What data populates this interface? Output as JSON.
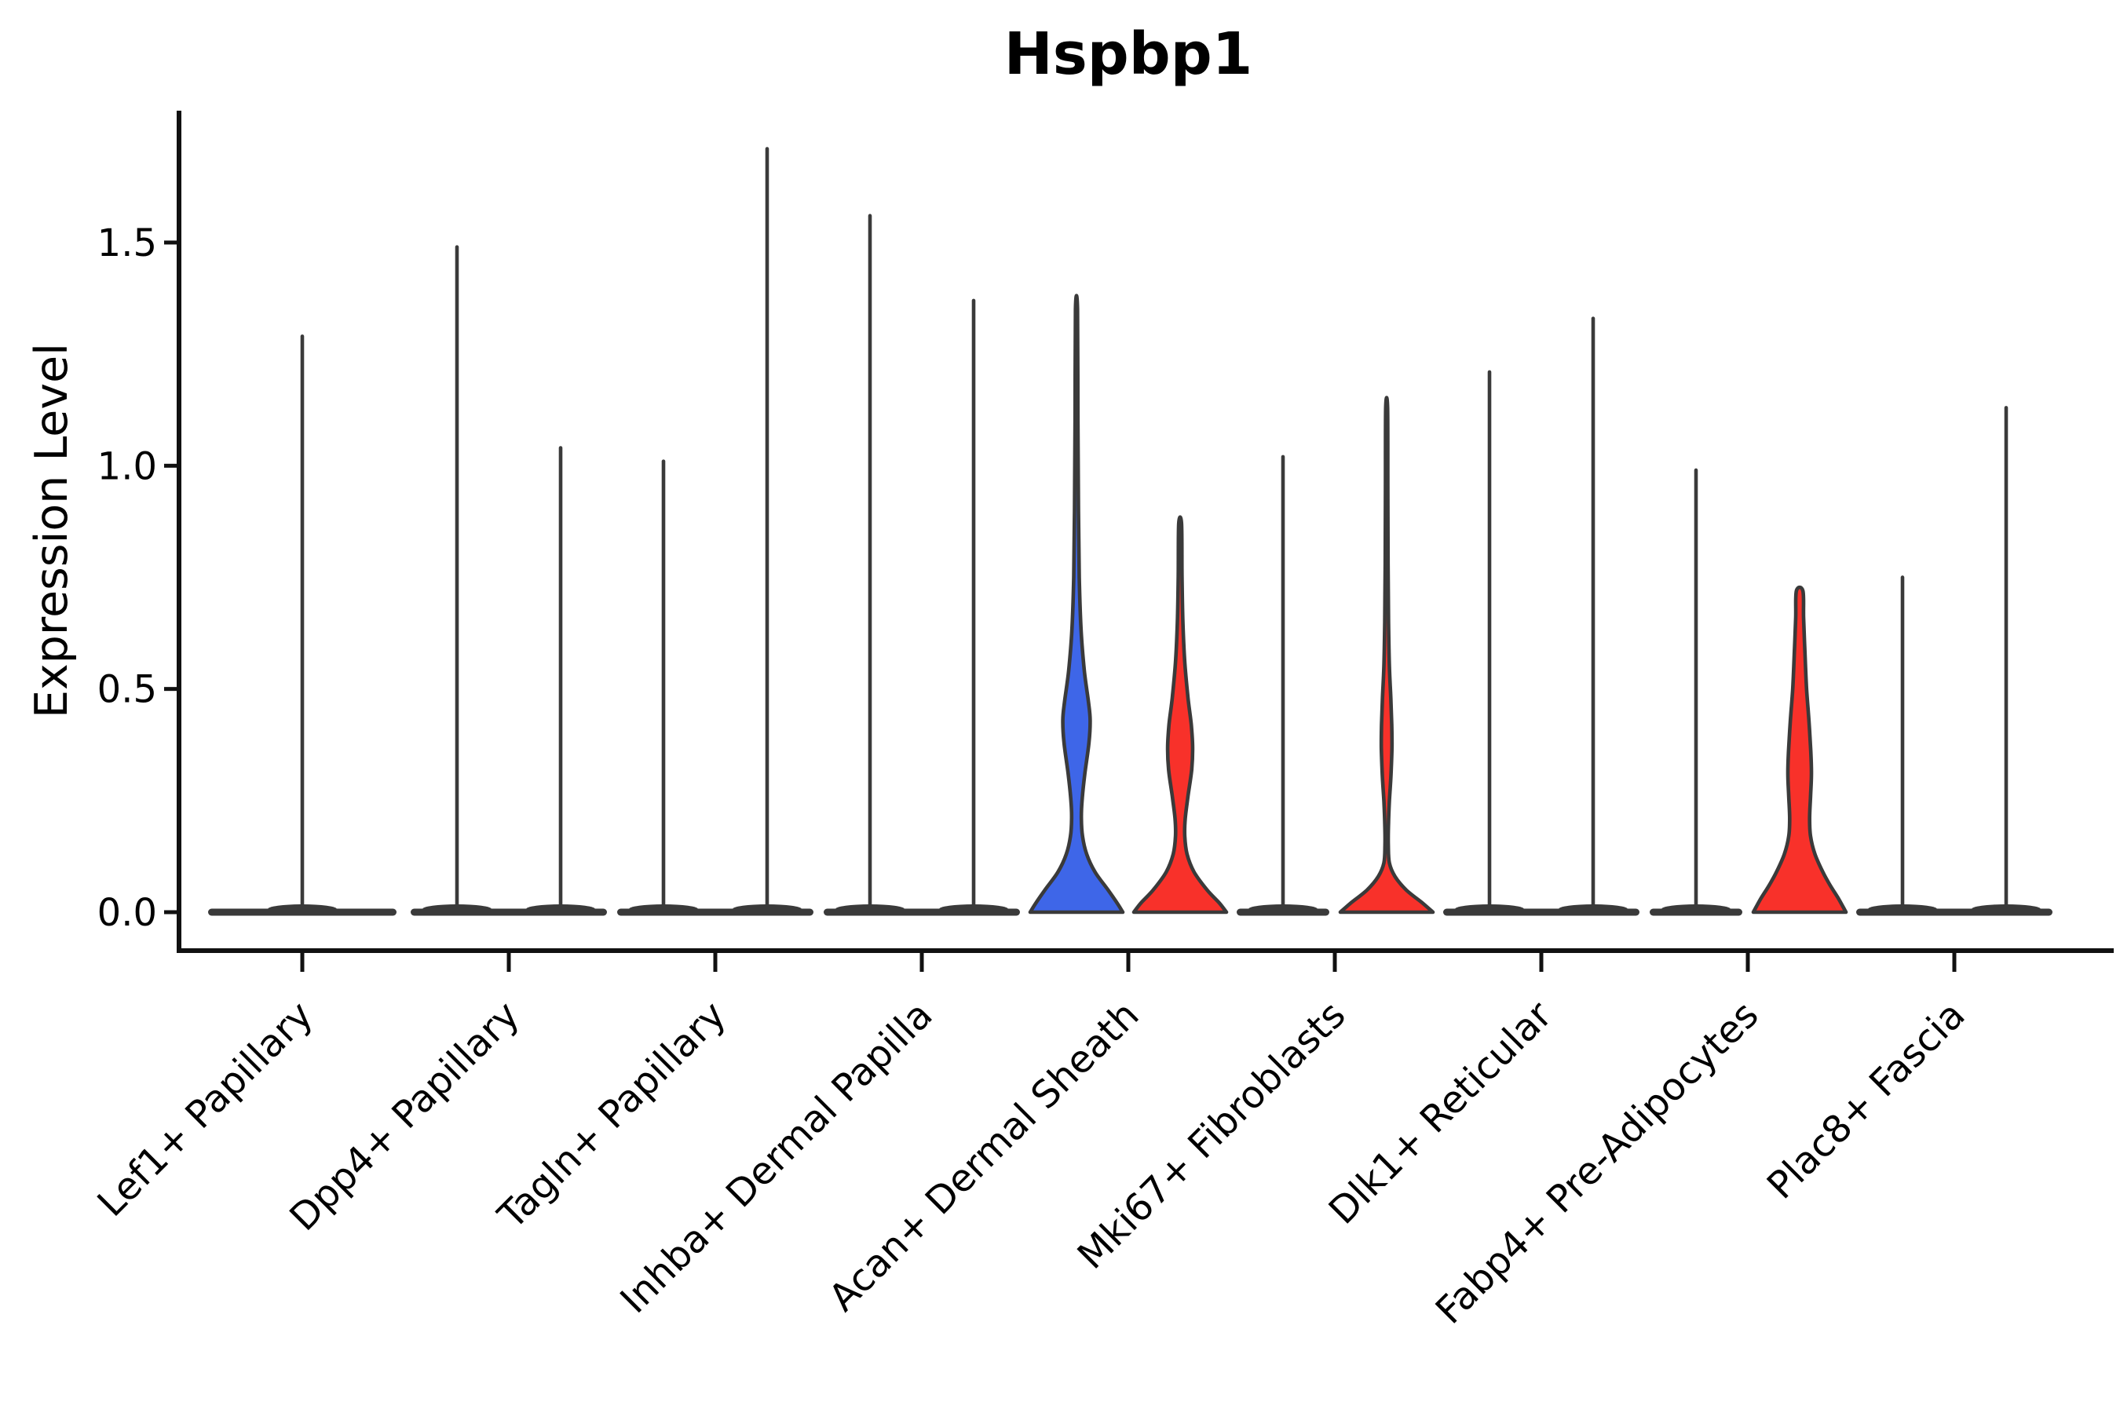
{
  "chart_data": {
    "type": "violin",
    "title": "Hspbp1",
    "ylabel": "Expression Level",
    "xlabel": "",
    "ylim": [
      0.0,
      1.8
    ],
    "yticks": {
      "values": [
        0.0,
        0.5,
        1.0,
        1.5
      ],
      "labels": [
        "0.0",
        "0.5",
        "1.0",
        "1.5"
      ]
    },
    "grid": false,
    "legend": "none",
    "split_violins_per_category": 2,
    "colors": {
      "blue_fill": "#3E66E8",
      "red_fill": "#F8312A",
      "violin_outline": "#3A3A3A",
      "axis": "#111111",
      "text": "#000000",
      "background": "#ffffff"
    },
    "categories": [
      {
        "label": "Lef1+ Papillary",
        "violins": [
          {
            "side": "center",
            "kind": "spike",
            "fill": "none",
            "max": 1.29
          }
        ]
      },
      {
        "label": "Dpp4+ Papillary",
        "violins": [
          {
            "side": "left",
            "kind": "spike",
            "fill": "none",
            "max": 1.49
          },
          {
            "side": "right",
            "kind": "spike",
            "fill": "none",
            "max": 1.04
          }
        ]
      },
      {
        "label": "Tagln+ Papillary",
        "violins": [
          {
            "side": "left",
            "kind": "spike",
            "fill": "none",
            "max": 1.01
          },
          {
            "side": "right",
            "kind": "spike",
            "fill": "none",
            "max": 1.71
          }
        ]
      },
      {
        "label": "Inhba+ Dermal Papilla",
        "violins": [
          {
            "side": "left",
            "kind": "spike",
            "fill": "none",
            "max": 1.56
          },
          {
            "side": "right",
            "kind": "spike",
            "fill": "none",
            "max": 1.37
          }
        ]
      },
      {
        "label": "Acan+ Dermal Sheath",
        "violins": [
          {
            "side": "left",
            "kind": "shaped",
            "fill": "blue",
            "max": 1.35,
            "profile": [
              [
                1.35,
                0.022
              ],
              [
                1.1,
                0.03
              ],
              [
                0.9,
                0.042
              ],
              [
                0.75,
                0.06
              ],
              [
                0.63,
                0.1
              ],
              [
                0.54,
                0.17
              ],
              [
                0.47,
                0.26
              ],
              [
                0.43,
                0.295
              ],
              [
                0.38,
                0.27
              ],
              [
                0.31,
                0.18
              ],
              [
                0.25,
                0.12
              ],
              [
                0.21,
                0.105
              ],
              [
                0.17,
                0.13
              ],
              [
                0.13,
                0.22
              ],
              [
                0.09,
                0.4
              ],
              [
                0.05,
                0.68
              ],
              [
                0.02,
                0.88
              ],
              [
                0.0,
                1.0
              ]
            ]
          },
          {
            "side": "right",
            "kind": "shaped",
            "fill": "red",
            "max": 0.87,
            "profile": [
              [
                0.87,
                0.03
              ],
              [
                0.75,
                0.04
              ],
              [
                0.65,
                0.06
              ],
              [
                0.56,
                0.1
              ],
              [
                0.48,
                0.17
              ],
              [
                0.42,
                0.24
              ],
              [
                0.37,
                0.27
              ],
              [
                0.32,
                0.25
              ],
              [
                0.26,
                0.17
              ],
              [
                0.21,
                0.11
              ],
              [
                0.17,
                0.1
              ],
              [
                0.13,
                0.15
              ],
              [
                0.09,
                0.3
              ],
              [
                0.05,
                0.58
              ],
              [
                0.02,
                0.85
              ],
              [
                0.0,
                1.0
              ]
            ]
          }
        ]
      },
      {
        "label": "Mki67+ Fibroblasts",
        "violins": [
          {
            "side": "left",
            "kind": "spike",
            "fill": "none",
            "max": 1.02
          },
          {
            "side": "right",
            "kind": "shaped",
            "fill": "red",
            "max": 1.13,
            "profile": [
              [
                1.13,
                0.02
              ],
              [
                0.95,
                0.025
              ],
              [
                0.78,
                0.03
              ],
              [
                0.65,
                0.04
              ],
              [
                0.55,
                0.06
              ],
              [
                0.48,
                0.09
              ],
              [
                0.42,
                0.11
              ],
              [
                0.37,
                0.115
              ],
              [
                0.31,
                0.095
              ],
              [
                0.25,
                0.06
              ],
              [
                0.2,
                0.04
              ],
              [
                0.15,
                0.035
              ],
              [
                0.11,
                0.06
              ],
              [
                0.08,
                0.18
              ],
              [
                0.05,
                0.42
              ],
              [
                0.02,
                0.78
              ],
              [
                0.0,
                1.0
              ]
            ]
          }
        ]
      },
      {
        "label": "Dlk1+ Reticular",
        "violins": [
          {
            "side": "left",
            "kind": "spike",
            "fill": "none",
            "max": 1.21
          },
          {
            "side": "right",
            "kind": "spike",
            "fill": "none",
            "max": 1.33
          }
        ]
      },
      {
        "label": "Fabp4+ Pre-Adipocytes",
        "violins": [
          {
            "side": "left",
            "kind": "spike",
            "fill": "none",
            "max": 0.99
          },
          {
            "side": "right",
            "kind": "shaped",
            "fill": "red",
            "max": 0.72,
            "profile": [
              [
                0.72,
                0.07
              ],
              [
                0.66,
                0.085
              ],
              [
                0.58,
                0.115
              ],
              [
                0.5,
                0.15
              ],
              [
                0.43,
                0.2
              ],
              [
                0.36,
                0.24
              ],
              [
                0.31,
                0.255
              ],
              [
                0.26,
                0.235
              ],
              [
                0.21,
                0.215
              ],
              [
                0.17,
                0.235
              ],
              [
                0.13,
                0.33
              ],
              [
                0.09,
                0.5
              ],
              [
                0.06,
                0.66
              ],
              [
                0.03,
                0.84
              ],
              [
                0.0,
                1.0
              ]
            ]
          }
        ]
      },
      {
        "label": "Plac8+ Fascia",
        "violins": [
          {
            "side": "left",
            "kind": "spike",
            "fill": "none",
            "max": 0.75
          },
          {
            "side": "right",
            "kind": "spike",
            "fill": "none",
            "max": 1.13
          }
        ]
      }
    ]
  }
}
